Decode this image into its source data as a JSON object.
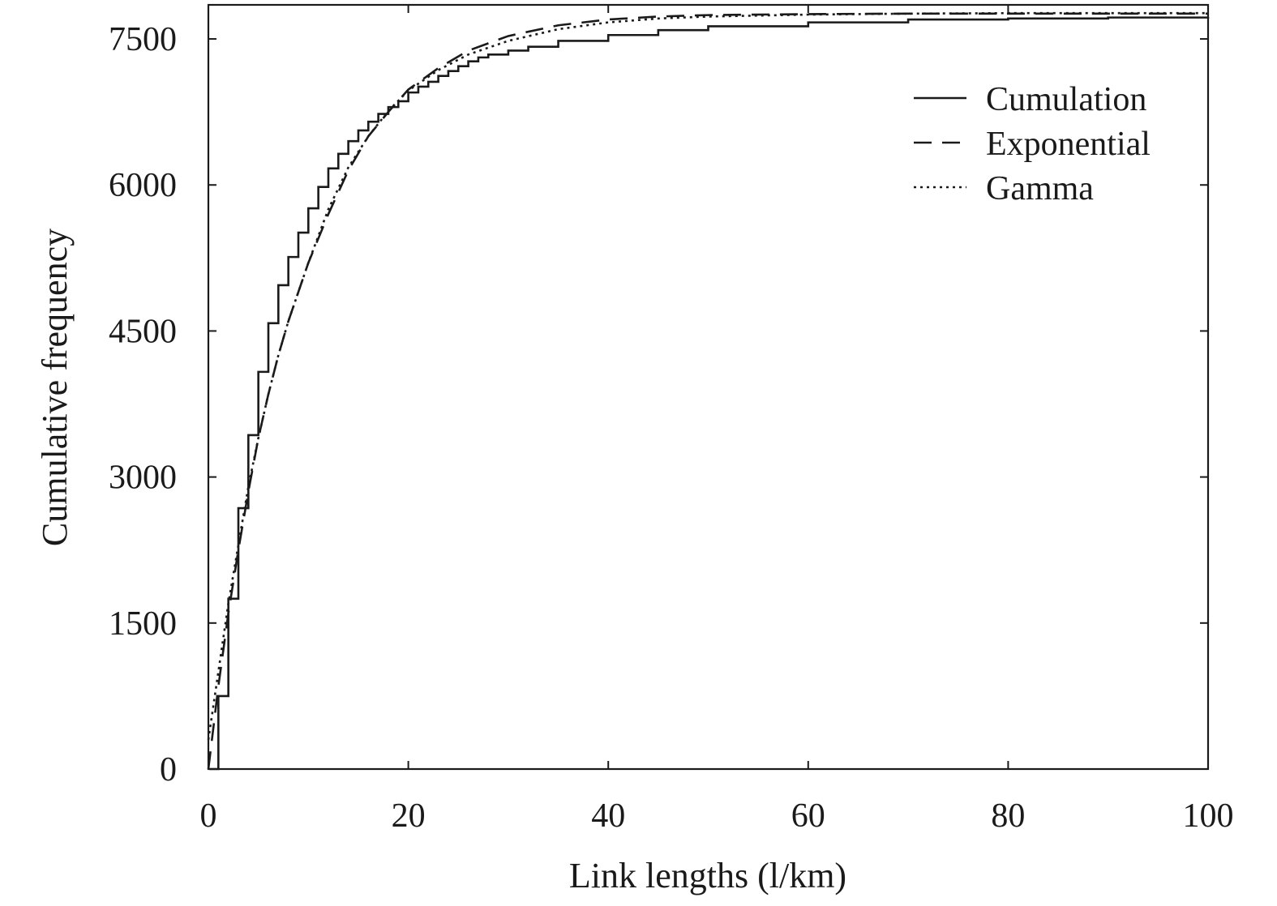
{
  "chart_data": {
    "type": "line",
    "title": "",
    "xlabel": "Link lengths (l/km)",
    "ylabel": "Cumulative frequency",
    "xlim": [
      0,
      100
    ],
    "ylim": [
      0,
      7850
    ],
    "xticks": [
      0,
      20,
      40,
      60,
      80,
      100
    ],
    "yticks": [
      0,
      1500,
      3000,
      4500,
      6000,
      7500
    ],
    "grid": false,
    "legend_position": "top-right",
    "color": "#1a1a1a",
    "series": [
      {
        "name": "Cumulation",
        "style": "solid",
        "step": true,
        "x": [
          0.1,
          1,
          2,
          3,
          4,
          5,
          6,
          7,
          8,
          9,
          10,
          11,
          12,
          13,
          14,
          15,
          16,
          17,
          18,
          19,
          20,
          21,
          22,
          23,
          24,
          25,
          26,
          27,
          28,
          30,
          32,
          35,
          40,
          45,
          50,
          60,
          70,
          80,
          90,
          100
        ],
        "y": [
          0,
          750,
          1750,
          2680,
          3430,
          4080,
          4580,
          4970,
          5260,
          5510,
          5760,
          5980,
          6170,
          6320,
          6450,
          6560,
          6650,
          6730,
          6800,
          6860,
          6950,
          7010,
          7060,
          7120,
          7170,
          7220,
          7270,
          7310,
          7340,
          7380,
          7420,
          7480,
          7540,
          7590,
          7630,
          7670,
          7700,
          7710,
          7720,
          7725
        ]
      },
      {
        "name": "Exponential",
        "style": "dashed",
        "step": false,
        "x": [
          0,
          1,
          2,
          3,
          4,
          5,
          6,
          7,
          8,
          10,
          12,
          14,
          16,
          18,
          20,
          23,
          26,
          30,
          35,
          40,
          45,
          50,
          60,
          70,
          80,
          90,
          100
        ],
        "y": [
          0,
          850,
          1600,
          2250,
          2850,
          3400,
          3850,
          4250,
          4600,
          5200,
          5700,
          6150,
          6500,
          6750,
          6980,
          7200,
          7380,
          7530,
          7640,
          7700,
          7730,
          7745,
          7755,
          7760,
          7760,
          7760,
          7760
        ]
      },
      {
        "name": "Gamma",
        "style": "dotted",
        "step": false,
        "x": [
          0,
          1,
          2,
          3,
          4,
          5,
          6,
          7,
          8,
          10,
          12,
          14,
          16,
          18,
          20,
          23,
          26,
          30,
          35,
          40,
          45,
          50,
          60,
          70,
          80,
          90,
          100
        ],
        "y": [
          300,
          1000,
          1700,
          2300,
          2900,
          3400,
          3850,
          4250,
          4600,
          5200,
          5750,
          6180,
          6500,
          6760,
          6970,
          7180,
          7340,
          7480,
          7600,
          7670,
          7710,
          7730,
          7750,
          7760,
          7765,
          7765,
          7765
        ]
      }
    ]
  }
}
